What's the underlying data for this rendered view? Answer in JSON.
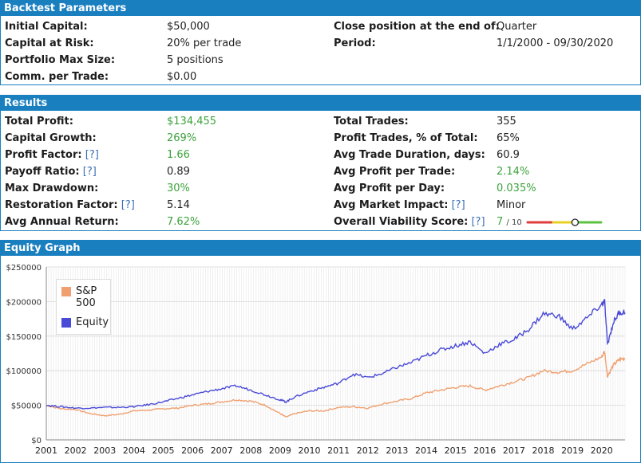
{
  "params": {
    "title": "Backtest Parameters",
    "rows": [
      {
        "label": "Initial Capital:",
        "value": "$50,000"
      },
      {
        "label": "Capital at Risk:",
        "value": "20% per trade"
      },
      {
        "label": "Portfolio Max Size:",
        "value": "5 positions"
      },
      {
        "label": "Comm. per Trade:",
        "value": "$0.00"
      }
    ],
    "right": [
      {
        "label": "Close position at the end of:",
        "value": "Quarter"
      },
      {
        "label": "Period:",
        "value": "1/1/2000 - 09/30/2020"
      }
    ]
  },
  "results": {
    "title": "Results",
    "help": "[?]",
    "left": [
      {
        "label": "Total Profit:",
        "value": "$134,455"
      },
      {
        "label": "Capital Growth:",
        "value": "269%"
      },
      {
        "label": "Profit Factor:",
        "value": "1.66"
      },
      {
        "label": "Payoff Ratio:",
        "value": "0.89"
      },
      {
        "label": "Max Drawdown:",
        "value": "30%"
      },
      {
        "label": "Restoration Factor:",
        "value": "5.14"
      },
      {
        "label": "Avg Annual Return:",
        "value": "7.62%"
      }
    ],
    "right": [
      {
        "label": "Total Trades:",
        "value": "355"
      },
      {
        "label": "Profit Trades, % of Total:",
        "value": "65%"
      },
      {
        "label": "Avg Trade Duration, days:",
        "value": "60.9"
      },
      {
        "label": "Avg Profit per Trade:",
        "value": "2.14%"
      },
      {
        "label": "Avg Profit per Day:",
        "value": "0.035%"
      },
      {
        "label": "Avg Market Impact:",
        "value": "Minor"
      },
      {
        "label": "Overall Viability Score:",
        "value": "7",
        "suffix": "/ 10",
        "score": 7
      }
    ]
  },
  "graph": {
    "title": "Equity Graph",
    "legend": {
      "sp500": "S&P 500",
      "equity": "Equity"
    }
  },
  "colors": {
    "header": "#1a7fbf",
    "green": "#3ca33c",
    "equity": "#4a4ad8",
    "sp500": "#f0a070"
  },
  "chart_data": {
    "type": "line",
    "title": "",
    "xlabel": "",
    "ylabel": "",
    "ylim": [
      0,
      250000
    ],
    "yticks": [
      "$0",
      "$50000",
      "$100000",
      "$150000",
      "$200000",
      "$250000"
    ],
    "xticks": [
      "2001",
      "2002",
      "2003",
      "2004",
      "2005",
      "2006",
      "2007",
      "2008",
      "2009",
      "2010",
      "2011",
      "2012",
      "2013",
      "2014",
      "2015",
      "2016",
      "2017",
      "2018",
      "2019",
      "2020"
    ],
    "x": [
      2001.0,
      2001.5,
      2002.0,
      2002.5,
      2003.0,
      2003.5,
      2004.0,
      2004.5,
      2005.0,
      2005.5,
      2006.0,
      2006.5,
      2007.0,
      2007.5,
      2008.0,
      2008.5,
      2009.0,
      2009.2,
      2009.5,
      2010.0,
      2010.5,
      2011.0,
      2011.5,
      2012.0,
      2012.5,
      2013.0,
      2013.5,
      2014.0,
      2014.5,
      2015.0,
      2015.5,
      2016.0,
      2016.5,
      2017.0,
      2017.5,
      2018.0,
      2018.5,
      2019.0,
      2019.5,
      2020.0,
      2020.1,
      2020.2,
      2020.4,
      2020.6,
      2020.8
    ],
    "series": [
      {
        "name": "S&P 500",
        "values": [
          50000,
          45000,
          44000,
          38000,
          35000,
          37000,
          42000,
          43000,
          45000,
          46000,
          50000,
          52000,
          55000,
          58000,
          56000,
          50000,
          38000,
          33000,
          38000,
          42000,
          42000,
          47000,
          48000,
          46000,
          52000,
          56000,
          60000,
          68000,
          72000,
          76000,
          78000,
          72000,
          78000,
          84000,
          90000,
          100000,
          98000,
          100000,
          110000,
          120000,
          128000,
          92000,
          108000,
          116000,
          118000
        ]
      },
      {
        "name": "Equity",
        "values": [
          50000,
          48000,
          46000,
          46000,
          47000,
          47000,
          48000,
          51000,
          55000,
          60000,
          65000,
          70000,
          74000,
          78000,
          72000,
          65000,
          58000,
          55000,
          62000,
          70000,
          76000,
          82000,
          95000,
          90000,
          96000,
          105000,
          112000,
          122000,
          130000,
          136000,
          142000,
          125000,
          138000,
          145000,
          160000,
          182000,
          180000,
          160000,
          176000,
          196000,
          200000,
          138000,
          170000,
          184000,
          184000
        ]
      }
    ]
  }
}
